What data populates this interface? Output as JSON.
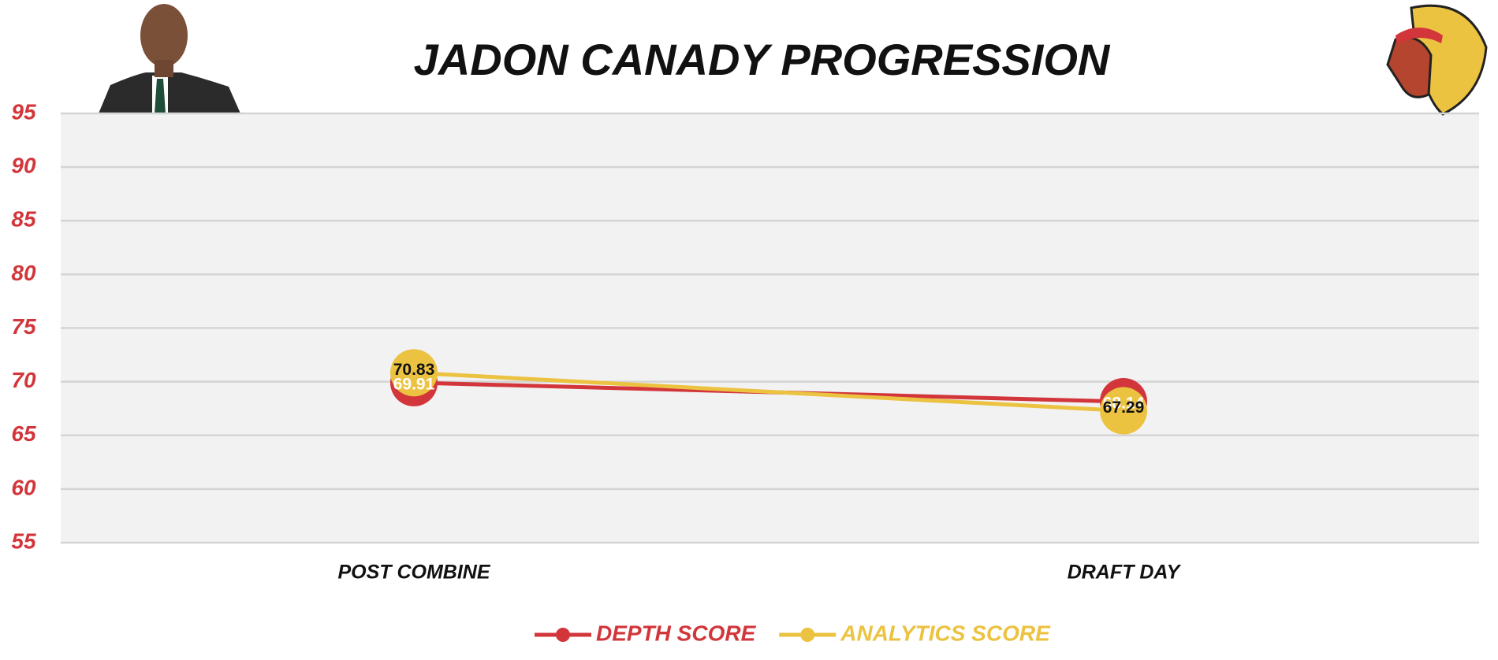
{
  "chart_data": {
    "type": "line",
    "title": "JADON CANADY PROGRESSION",
    "categories": [
      "POST COMBINE",
      "DRAFT DAY"
    ],
    "series": [
      {
        "name": "DEPTH SCORE",
        "color": "#d2363b",
        "values": [
          69.91,
          68.14
        ]
      },
      {
        "name": "ANALYTICS SCORE",
        "color": "#ecc241",
        "values": [
          70.83,
          67.29
        ]
      }
    ],
    "ylim": [
      55,
      95
    ],
    "yticks": [
      55,
      60,
      65,
      70,
      75,
      80,
      85,
      90,
      95
    ],
    "grid": true
  }
}
